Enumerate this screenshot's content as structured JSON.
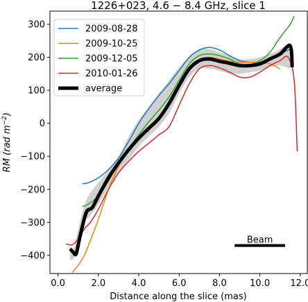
{
  "chart_data": {
    "type": "line",
    "title": "1226+023, 4.6 − 8.4 GHz, slice 1",
    "xlabel": "Distance along the slice (mas)",
    "ylabel_main": "RM (rad m",
    "ylabel_sup": "−2",
    "ylabel_close": ")",
    "xlim": [
      -0.4,
      12.35
    ],
    "ylim": [
      -455,
      340
    ],
    "xticks": [
      0,
      2,
      4,
      6,
      8,
      10,
      12
    ],
    "xtick_labels": [
      "0.0",
      "2.0",
      "4.0",
      "6.0",
      "8.0",
      "10.0",
      "12.0"
    ],
    "yticks": [
      -400,
      -300,
      -200,
      -100,
      0,
      100,
      200,
      300
    ],
    "ytick_labels": [
      "−400",
      "−300",
      "−200",
      "−100",
      "0",
      "100",
      "200",
      "300"
    ],
    "legend_position": "upper left",
    "beam_label": "Beam",
    "beam": {
      "x": [
        8.75,
        11.25
      ],
      "y": -370
    },
    "band": {
      "x": [
        0.6,
        0.8,
        1.0,
        1.3,
        1.6,
        2.0,
        2.5,
        3.0,
        3.5,
        4.0,
        4.5,
        5.0,
        5.5,
        6.0,
        6.5,
        7.0,
        7.5,
        8.0,
        8.5,
        9.0,
        9.5,
        10.0,
        10.5,
        11.0,
        11.5
      ],
      "lower": [
        -415,
        -405,
        -360,
        -300,
        -280,
        -245,
        -195,
        -150,
        -110,
        -70,
        -40,
        -10,
        30,
        90,
        140,
        165,
        165,
        160,
        150,
        150,
        155,
        160,
        170,
        175,
        165
      ],
      "upper": [
        -385,
        -375,
        -320,
        -250,
        -210,
        -180,
        -140,
        -100,
        -40,
        10,
        50,
        90,
        130,
        170,
        200,
        225,
        225,
        215,
        205,
        195,
        195,
        200,
        210,
        225,
        245
      ]
    },
    "series": [
      {
        "name": "2009-08-28",
        "color": "#1f77b4",
        "width": 1.5,
        "x": [
          1.2,
          1.5,
          2.0,
          2.5,
          3.0,
          3.5,
          4.0,
          4.5,
          5.0,
          5.5,
          6.0,
          6.5,
          7.0,
          7.5,
          8.0,
          8.5,
          9.0,
          9.5,
          10.0,
          10.5,
          11.0,
          11.5
        ],
        "y": [
          -183,
          -180,
          -165,
          -140,
          -105,
          -55,
          0,
          45,
          85,
          120,
          160,
          200,
          222,
          230,
          222,
          205,
          190,
          185,
          185,
          195,
          210,
          225
        ]
      },
      {
        "name": "2009-10-25",
        "color": "#ff7f0e",
        "width": 1.5,
        "x": [
          0.7,
          1.0,
          1.3,
          1.6,
          2.0,
          2.5,
          3.0,
          3.5,
          4.0,
          4.5,
          5.0,
          5.5,
          6.0,
          6.5,
          7.0,
          7.5,
          8.0,
          8.5,
          9.0,
          9.5,
          10.0,
          10.5,
          11.0
        ],
        "y": [
          -452,
          -430,
          -400,
          -355,
          -290,
          -200,
          -130,
          -80,
          -40,
          -10,
          20,
          60,
          110,
          160,
          190,
          200,
          195,
          188,
          185,
          185,
          185,
          180,
          165
        ]
      },
      {
        "name": "2009-12-05",
        "color": "#2ca02c",
        "width": 1.5,
        "x": [
          1.2,
          1.5,
          2.0,
          2.5,
          3.0,
          3.5,
          4.0,
          4.5,
          5.0,
          5.5,
          6.0,
          6.5,
          7.0,
          7.5,
          8.0,
          8.5,
          9.0,
          9.5,
          10.0,
          10.5,
          11.0,
          11.5,
          11.7
        ],
        "y": [
          -252,
          -245,
          -220,
          -175,
          -120,
          -75,
          -35,
          5,
          40,
          80,
          130,
          180,
          205,
          210,
          205,
          195,
          180,
          178,
          190,
          215,
          260,
          300,
          325
        ]
      },
      {
        "name": "2010-01-26",
        "color": "#d62728",
        "width": 1.5,
        "x": [
          0.4,
          0.7,
          1.0,
          1.3,
          1.6,
          2.0,
          2.5,
          3.0,
          3.5,
          4.0,
          4.5,
          5.0,
          5.5,
          6.0,
          6.5,
          7.0,
          7.5,
          8.0,
          8.5,
          9.0,
          9.5,
          10.0,
          10.5,
          11.0,
          11.4,
          11.7,
          11.85
        ],
        "y": [
          -365,
          -368,
          -350,
          -320,
          -300,
          -260,
          -200,
          -150,
          -115,
          -85,
          -60,
          -35,
          -10,
          55,
          120,
          165,
          175,
          168,
          155,
          140,
          140,
          155,
          175,
          190,
          200,
          130,
          -85
        ]
      },
      {
        "name": "average",
        "color": "#000000",
        "width": 5,
        "x": [
          0.6,
          0.75,
          0.9,
          1.1,
          1.4,
          1.7,
          2.0,
          2.5,
          3.0,
          3.5,
          4.0,
          4.5,
          5.0,
          5.5,
          6.0,
          6.5,
          7.0,
          7.5,
          8.0,
          8.5,
          9.0,
          9.5,
          10.0,
          10.5,
          11.0,
          11.5,
          11.6
        ],
        "y": [
          -380,
          -390,
          -395,
          -340,
          -270,
          -255,
          -220,
          -165,
          -120,
          -80,
          -45,
          -15,
          15,
          60,
          115,
          165,
          190,
          195,
          188,
          182,
          175,
          175,
          180,
          195,
          210,
          235,
          170
        ]
      }
    ]
  }
}
